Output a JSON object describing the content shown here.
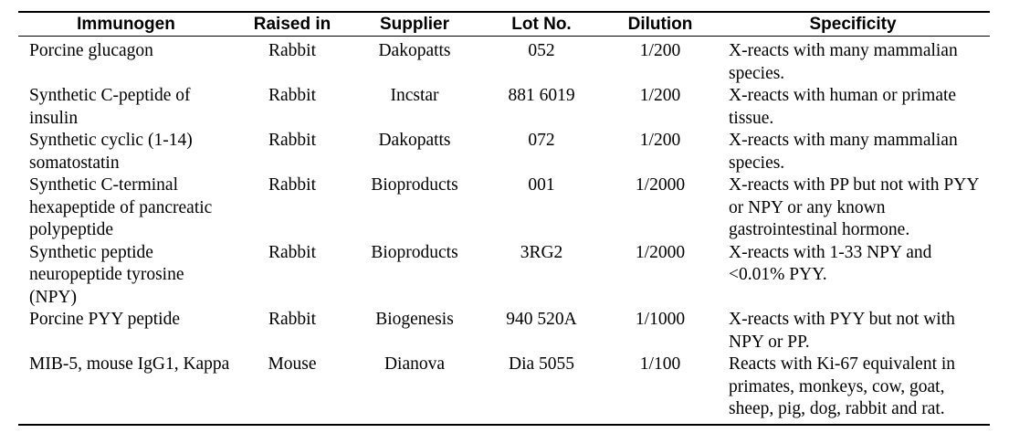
{
  "headers": [
    "Immunogen",
    "Raised in",
    "Supplier",
    "Lot No.",
    "Dilution",
    "Specificity"
  ],
  "rows": [
    {
      "immunogen": "Porcine glucagon",
      "raised_in": "Rabbit",
      "supplier": "Dakopatts",
      "lot": "052",
      "dilution": "1/200",
      "specificity": "X-reacts with many mammalian species."
    },
    {
      "immunogen": "Synthetic C-peptide of insulin",
      "raised_in": "Rabbit",
      "supplier": "Incstar",
      "lot": "881 6019",
      "dilution": "1/200",
      "specificity": "X-reacts with human or primate tissue."
    },
    {
      "immunogen": "Synthetic cyclic (1-14) somatostatin",
      "raised_in": "Rabbit",
      "supplier": "Dakopatts",
      "lot": "072",
      "dilution": "1/200",
      "specificity": "X-reacts with many mammalian species."
    },
    {
      "immunogen": "Synthetic C-terminal hexapeptide of pancreatic polypeptide",
      "raised_in": "Rabbit",
      "supplier": "Bioproducts",
      "lot": "001",
      "dilution": "1/2000",
      "specificity": "X-reacts with PP but not with PYY or NPY or any known gastrointestinal hormone."
    },
    {
      "immunogen": "Synthetic peptide neuropeptide tyrosine (NPY)",
      "raised_in": "Rabbit",
      "supplier": "Bioproducts",
      "lot": "3RG2",
      "dilution": "1/2000",
      "specificity": "X-reacts with 1-33 NPY and <0.01% PYY."
    },
    {
      "immunogen": "Porcine PYY peptide",
      "raised_in": "Rabbit",
      "supplier": "Biogenesis",
      "lot": "940 520A",
      "dilution": "1/1000",
      "specificity": "X-reacts with PYY but not with NPY or PP."
    },
    {
      "immunogen": "MIB-5, mouse IgG1, Kappa",
      "raised_in": "Mouse",
      "supplier": "Dianova",
      "lot": "Dia 5055",
      "dilution": "1/100",
      "specificity": "Reacts with Ki-67 equivalent in primates, monkeys, cow, goat, sheep, pig, dog, rabbit and rat."
    }
  ]
}
